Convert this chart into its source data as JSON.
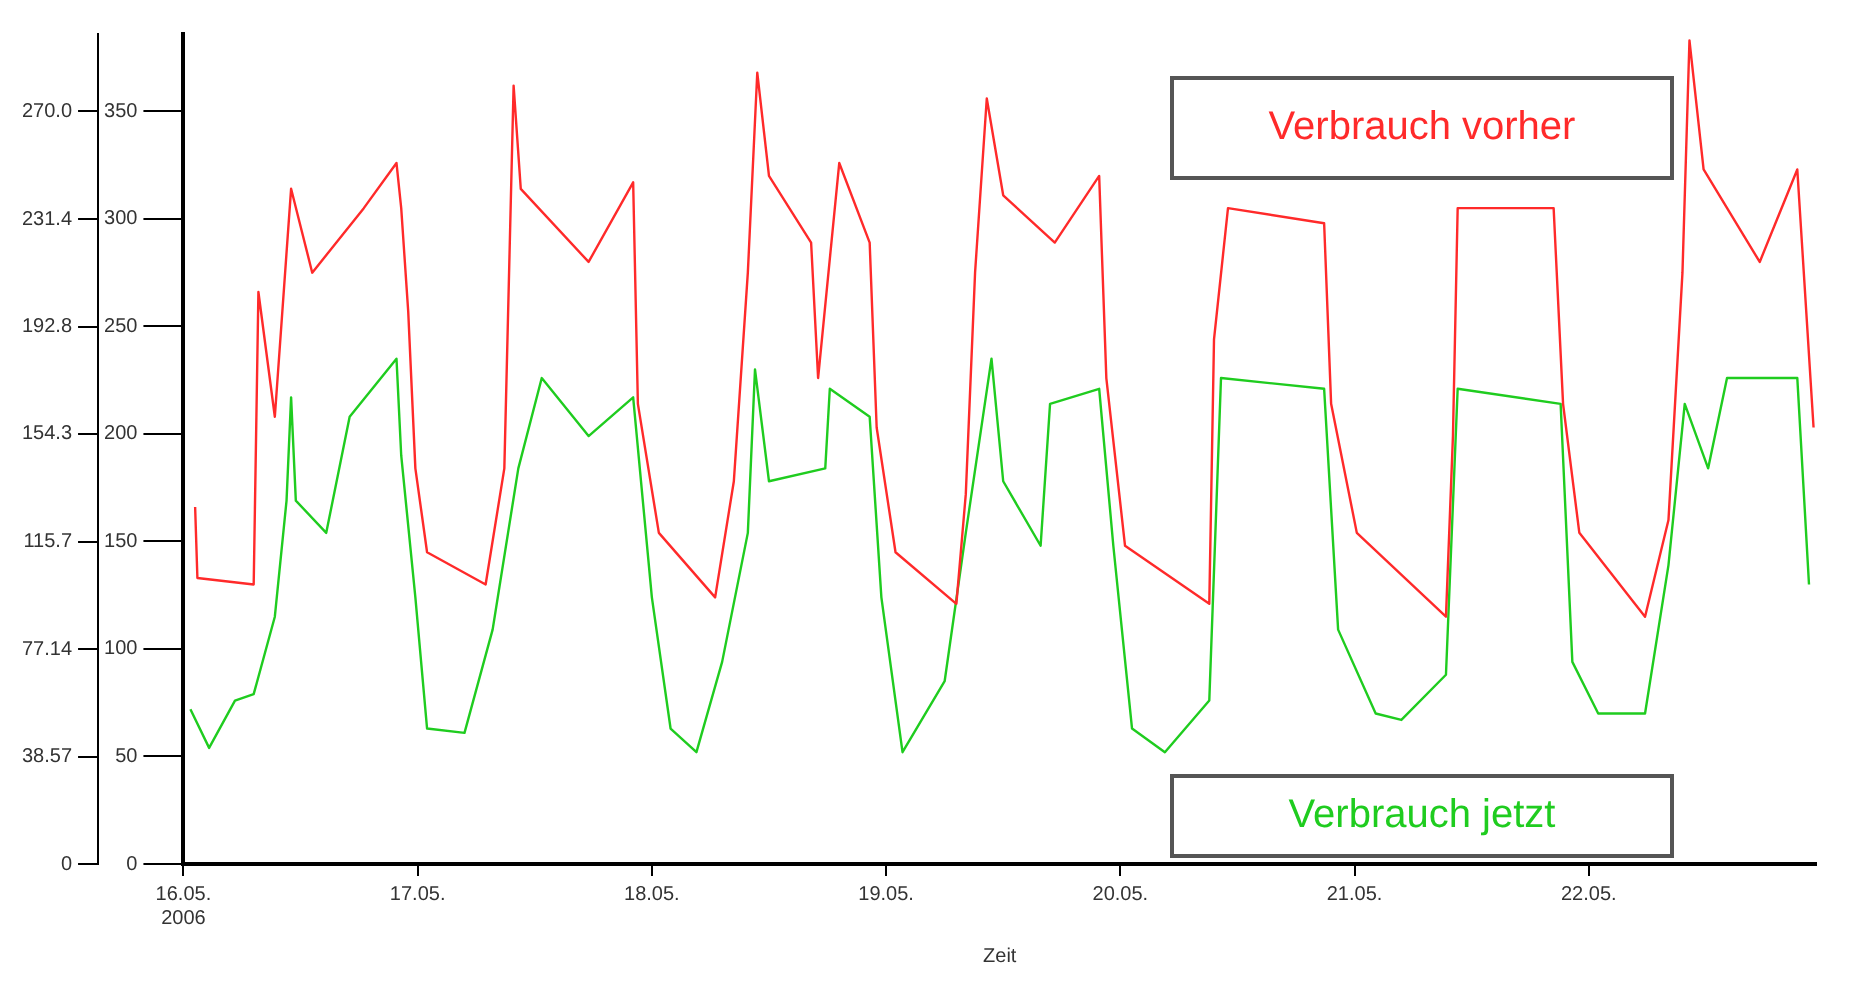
{
  "chart_data": {
    "type": "line",
    "xlabel": "Zeit",
    "legend": "right",
    "grid": false,
    "marker": "none",
    "line_style": "solid",
    "xlim": [
      "2006-05-16T00:00",
      "2006-05-22T23:17"
    ],
    "xticks": [
      {
        "value": "2006-05-16",
        "label": "16.05. 2006"
      },
      {
        "value": "2006-05-17",
        "label": "17.05."
      },
      {
        "value": "2006-05-18",
        "label": "18.05."
      },
      {
        "value": "2006-05-19",
        "label": "19.05."
      },
      {
        "value": "2006-05-20",
        "label": "20.05."
      },
      {
        "value": "2006-05-21",
        "label": "21.05."
      },
      {
        "value": "2006-05-22",
        "label": "22.05."
      }
    ],
    "ylim": [
      0,
      386
    ],
    "yticks": [
      0,
      50,
      100,
      150,
      200,
      250,
      300,
      350
    ],
    "y2lim": [
      0,
      297.8
    ],
    "y2ticks": [
      0,
      38.57,
      77.14,
      115.7,
      154.3,
      192.8,
      231.4,
      {
        "value": 270,
        "label": "270.0"
      }
    ],
    "series": [
      {
        "name": "Verbrauch vorher",
        "color": "#ff2a2a",
        "x": [
          "2006-05-16T01:12",
          "2006-05-16T01:26",
          "2006-05-16T07:12",
          "2006-05-16T07:41",
          "2006-05-16T09:22",
          "2006-05-16T11:02",
          "2006-05-16T13:12",
          "2006-05-16T18:29",
          "2006-05-16T21:50",
          "2006-05-16T22:19",
          "2006-05-16T23:02",
          "2006-05-16T23:46",
          "2006-05-17T00:58",
          "2006-05-17T06:58",
          "2006-05-17T08:53",
          "2006-05-17T09:50",
          "2006-05-17T10:34",
          "2006-05-17T17:31",
          "2006-05-17T22:05",
          "2006-05-17T22:34",
          "2006-05-18T00:43",
          "2006-05-18T06:29",
          "2006-05-18T08:24",
          "2006-05-18T09:50",
          "2006-05-18T10:48",
          "2006-05-18T12:00",
          "2006-05-18T16:19",
          "2006-05-18T17:02",
          "2006-05-18T19:12",
          "2006-05-18T22:19",
          "2006-05-18T23:02",
          "2006-05-19T00:58",
          "2006-05-19T07:12",
          "2006-05-19T08:10",
          "2006-05-19T09:07",
          "2006-05-19T10:19",
          "2006-05-19T12:00",
          "2006-05-19T17:17",
          "2006-05-19T21:50",
          "2006-05-19T22:34",
          "2006-05-20T00:29",
          "2006-05-20T09:07",
          "2006-05-20T09:36",
          "2006-05-20T11:02",
          "2006-05-20T20:53",
          "2006-05-20T21:36",
          "2006-05-21T00:14",
          "2006-05-21T09:22",
          "2006-05-21T10:05",
          "2006-05-21T10:34",
          "2006-05-21T20:24",
          "2006-05-21T21:22",
          "2006-05-21T23:02",
          "2006-05-22T05:46",
          "2006-05-22T08:10",
          "2006-05-22T09:36",
          "2006-05-22T10:19",
          "2006-05-22T11:46",
          "2006-05-22T17:31",
          "2006-05-22T21:22",
          "2006-05-22T23:02"
        ],
        "values": [
          166,
          133,
          130,
          266,
          208,
          314,
          275,
          305,
          326,
          305,
          257,
          184,
          145,
          130,
          184,
          362,
          314,
          280,
          317,
          214,
          154,
          124,
          178,
          275,
          368,
          320,
          289,
          226,
          326,
          289,
          203,
          145,
          121,
          172,
          275,
          356,
          311,
          289,
          320,
          226,
          148,
          121,
          244,
          305,
          298,
          214,
          154,
          115,
          199,
          305,
          305,
          214,
          154,
          115,
          160,
          275,
          383,
          323,
          280,
          323,
          203
        ]
      },
      {
        "name": "Verbrauch jetzt",
        "color": "#1fcc1f",
        "x": [
          "2006-05-16T00:43",
          "2006-05-16T02:38",
          "2006-05-16T05:17",
          "2006-05-16T07:12",
          "2006-05-16T09:22",
          "2006-05-16T10:34",
          "2006-05-16T11:02",
          "2006-05-16T11:31",
          "2006-05-16T14:38",
          "2006-05-16T17:02",
          "2006-05-16T21:50",
          "2006-05-16T22:19",
          "2006-05-16T23:46",
          "2006-05-17T00:58",
          "2006-05-17T04:48",
          "2006-05-17T07:41",
          "2006-05-17T10:19",
          "2006-05-17T12:43",
          "2006-05-17T17:31",
          "2006-05-17T22:05",
          "2006-05-18T00:00",
          "2006-05-18T01:55",
          "2006-05-18T04:34",
          "2006-05-18T07:12",
          "2006-05-18T09:50",
          "2006-05-18T10:34",
          "2006-05-18T12:00",
          "2006-05-18T17:46",
          "2006-05-18T18:14",
          "2006-05-18T22:19",
          "2006-05-18T23:31",
          "2006-05-19T01:41",
          "2006-05-19T06:00",
          "2006-05-19T08:10",
          "2006-05-19T10:48",
          "2006-05-19T12:00",
          "2006-05-19T15:50",
          "2006-05-19T16:48",
          "2006-05-19T21:50",
          "2006-05-19T23:17",
          "2006-05-20T01:12",
          "2006-05-20T04:34",
          "2006-05-20T09:07",
          "2006-05-20T10:19",
          "2006-05-20T20:53",
          "2006-05-20T22:19",
          "2006-05-21T02:10",
          "2006-05-21T04:48",
          "2006-05-21T09:22",
          "2006-05-21T10:34",
          "2006-05-21T21:07",
          "2006-05-21T22:19",
          "2006-05-22T00:58",
          "2006-05-22T05:46",
          "2006-05-22T08:10",
          "2006-05-22T09:50",
          "2006-05-22T12:14",
          "2006-05-22T14:10",
          "2006-05-22T21:22",
          "2006-05-22T22:34"
        ],
        "values": [
          72,
          54,
          76,
          79,
          115,
          169,
          217,
          169,
          154,
          208,
          235,
          190,
          124,
          63,
          61,
          109,
          184,
          226,
          199,
          217,
          124,
          63,
          52,
          94,
          154,
          230,
          178,
          184,
          221,
          208,
          124,
          52,
          85,
          154,
          235,
          178,
          148,
          214,
          221,
          148,
          63,
          52,
          76,
          226,
          221,
          109,
          70,
          67,
          88,
          221,
          214,
          94,
          70,
          70,
          139,
          214,
          184,
          226,
          226,
          130
        ]
      }
    ]
  }
}
